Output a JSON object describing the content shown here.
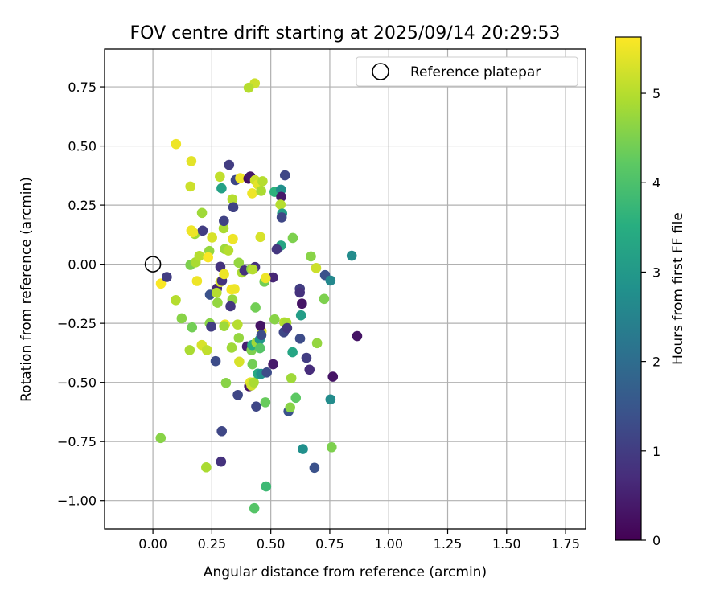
{
  "chart_data": {
    "type": "scatter",
    "title": "FOV centre drift starting at 2025/09/14 20:29:53",
    "xlabel": "Angular distance from reference (arcmin)",
    "ylabel": "Rotation from reference (arcmin)",
    "xlim": [
      -0.205,
      1.835
    ],
    "ylim": [
      -1.12,
      0.91
    ],
    "x_ticks": [
      0.0,
      0.25,
      0.5,
      0.75,
      1.0,
      1.25,
      1.5,
      1.75
    ],
    "x_tick_labels": [
      "0.00",
      "0.25",
      "0.50",
      "0.75",
      "1.00",
      "1.25",
      "1.50",
      "1.75"
    ],
    "y_ticks": [
      0.75,
      0.5,
      0.25,
      0.0,
      -0.25,
      -0.5,
      -0.75,
      -1.0
    ],
    "y_tick_labels": [
      "0.75",
      "0.50",
      "0.25",
      "0.00",
      "−0.25",
      "−0.50",
      "−0.75",
      "−1.00"
    ],
    "grid": true,
    "legend": {
      "placement": "top-right",
      "entries": [
        "Reference platepar"
      ]
    },
    "reference_point": {
      "x": 0.0,
      "y": 0.0,
      "marker": "open-circle"
    },
    "colorbar": {
      "label": "Hours from first FF file",
      "colormap": "viridis",
      "range": [
        0,
        5.63
      ],
      "ticks": [
        0,
        1,
        2,
        3,
        4,
        5
      ],
      "tick_labels": [
        "0",
        "1",
        "2",
        "3",
        "4",
        "5"
      ]
    },
    "points": [
      [
        0.432,
        0.765,
        5.2
      ],
      [
        0.406,
        0.746,
        5.0
      ],
      [
        0.098,
        0.508,
        5.5
      ],
      [
        0.163,
        0.436,
        5.4
      ],
      [
        0.159,
        0.329,
        5.2
      ],
      [
        0.122,
        -0.229,
        4.6
      ],
      [
        0.097,
        -0.152,
        5.0
      ],
      [
        0.034,
        -0.082,
        5.6
      ],
      [
        0.059,
        -0.054,
        1.0
      ],
      [
        0.033,
        -0.735,
        4.6
      ],
      [
        0.163,
        0.143,
        5.5
      ],
      [
        0.178,
        0.128,
        4.8
      ],
      [
        0.208,
        0.217,
        4.8
      ],
      [
        0.211,
        0.142,
        1.0
      ],
      [
        0.17,
        0.135,
        5.5
      ],
      [
        0.159,
        -0.003,
        4.5
      ],
      [
        0.181,
        0.008,
        4.9
      ],
      [
        0.197,
        0.035,
        5.0
      ],
      [
        0.187,
        -0.071,
        5.5
      ],
      [
        0.166,
        -0.267,
        4.4
      ],
      [
        0.156,
        -0.363,
        4.9
      ],
      [
        0.207,
        -0.342,
        5.3
      ],
      [
        0.229,
        -0.363,
        5.1
      ],
      [
        0.226,
        -0.859,
        4.9
      ],
      [
        0.239,
        0.056,
        4.7
      ],
      [
        0.234,
        0.029,
        5.6
      ],
      [
        0.251,
        0.113,
        5.3
      ],
      [
        0.242,
        -0.129,
        1.4
      ],
      [
        0.241,
        -0.25,
        4.6
      ],
      [
        0.247,
        -0.264,
        1.0
      ],
      [
        0.266,
        -0.41,
        1.3
      ],
      [
        0.284,
        0.37,
        5.1
      ],
      [
        0.291,
        0.321,
        3.2
      ],
      [
        0.3,
        0.152,
        4.9
      ],
      [
        0.301,
        0.183,
        1.1
      ],
      [
        0.286,
        -0.011,
        0.8
      ],
      [
        0.272,
        -0.103,
        0.6
      ],
      [
        0.27,
        -0.121,
        5.0
      ],
      [
        0.286,
        -0.075,
        5.3
      ],
      [
        0.274,
        -0.163,
        4.7
      ],
      [
        0.293,
        -0.07,
        0.8
      ],
      [
        0.302,
        -0.042,
        5.5
      ],
      [
        0.305,
        0.064,
        4.8
      ],
      [
        0.306,
        -0.255,
        5.5
      ],
      [
        0.302,
        -0.262,
        4.8
      ],
      [
        0.292,
        -0.706,
        1.2
      ],
      [
        0.289,
        -0.835,
        0.8
      ],
      [
        0.323,
        0.42,
        1.0
      ],
      [
        0.337,
        0.275,
        5.0
      ],
      [
        0.341,
        0.241,
        1.1
      ],
      [
        0.351,
        0.356,
        1.2
      ],
      [
        0.37,
        0.364,
        5.5
      ],
      [
        0.339,
        0.107,
        5.5
      ],
      [
        0.32,
        0.058,
        5.0
      ],
      [
        0.333,
        -0.107,
        5.6
      ],
      [
        0.337,
        -0.15,
        4.7
      ],
      [
        0.346,
        -0.105,
        5.5
      ],
      [
        0.329,
        -0.178,
        0.9
      ],
      [
        0.334,
        -0.353,
        4.8
      ],
      [
        0.31,
        -0.502,
        4.6
      ],
      [
        0.364,
        0.006,
        4.7
      ],
      [
        0.378,
        -0.035,
        4.9
      ],
      [
        0.388,
        -0.026,
        0.8
      ],
      [
        0.359,
        -0.255,
        5.0
      ],
      [
        0.364,
        -0.312,
        4.7
      ],
      [
        0.366,
        -0.412,
        5.3
      ],
      [
        0.36,
        -0.553,
        1.2
      ],
      [
        0.405,
        0.362,
        0.2
      ],
      [
        0.413,
        0.371,
        0.4
      ],
      [
        0.433,
        0.355,
        5.2
      ],
      [
        0.446,
        0.337,
        5.4
      ],
      [
        0.421,
        0.3,
        5.5
      ],
      [
        0.465,
        0.351,
        5.0
      ],
      [
        0.459,
        0.31,
        4.9
      ],
      [
        0.456,
        0.115,
        5.3
      ],
      [
        0.417,
        -0.02,
        4.6
      ],
      [
        0.433,
        -0.012,
        0.8
      ],
      [
        0.423,
        -0.022,
        5.0
      ],
      [
        0.399,
        -0.348,
        0.5
      ],
      [
        0.418,
        -0.364,
        4.5
      ],
      [
        0.421,
        -0.342,
        3.5
      ],
      [
        0.439,
        -0.331,
        4.8
      ],
      [
        0.453,
        -0.319,
        2.9
      ],
      [
        0.461,
        -0.284,
        5.4
      ],
      [
        0.456,
        -0.26,
        0.3
      ],
      [
        0.46,
        -0.3,
        1.3
      ],
      [
        0.435,
        -0.183,
        4.4
      ],
      [
        0.473,
        -0.074,
        4.4
      ],
      [
        0.454,
        -0.355,
        4.1
      ],
      [
        0.408,
        -0.516,
        0.3
      ],
      [
        0.413,
        -0.5,
        5.4
      ],
      [
        0.418,
        -0.513,
        5.2
      ],
      [
        0.428,
        -0.5,
        4.9
      ],
      [
        0.422,
        -0.423,
        4.4
      ],
      [
        0.445,
        -0.463,
        3.4
      ],
      [
        0.459,
        -0.464,
        2.8
      ],
      [
        0.483,
        -0.458,
        1.3
      ],
      [
        0.438,
        -0.602,
        1.2
      ],
      [
        0.477,
        -0.584,
        4.3
      ],
      [
        0.48,
        -0.94,
        3.8
      ],
      [
        0.43,
        -1.032,
        4.1
      ],
      [
        0.516,
        0.306,
        3.6
      ],
      [
        0.543,
        0.315,
        2.8
      ],
      [
        0.544,
        0.285,
        0.4
      ],
      [
        0.541,
        0.252,
        5.0
      ],
      [
        0.548,
        0.214,
        3.1
      ],
      [
        0.546,
        0.198,
        1.2
      ],
      [
        0.543,
        0.079,
        3.3
      ],
      [
        0.525,
        0.063,
        0.9
      ],
      [
        0.509,
        -0.056,
        0.6
      ],
      [
        0.56,
        0.376,
        1.2
      ],
      [
        0.593,
        0.111,
        4.5
      ],
      [
        0.516,
        -0.233,
        4.6
      ],
      [
        0.557,
        -0.246,
        5.0
      ],
      [
        0.566,
        -0.247,
        4.9
      ],
      [
        0.555,
        -0.288,
        1.2
      ],
      [
        0.569,
        -0.27,
        0.9
      ],
      [
        0.592,
        -0.372,
        3.3
      ],
      [
        0.575,
        -0.622,
        1.4
      ],
      [
        0.582,
        -0.606,
        4.6
      ],
      [
        0.587,
        -0.482,
        4.8
      ],
      [
        0.51,
        -0.423,
        0.4
      ],
      [
        0.606,
        -0.565,
        4.2
      ],
      [
        0.623,
        -0.104,
        1.0
      ],
      [
        0.623,
        -0.12,
        0.8
      ],
      [
        0.632,
        -0.167,
        0.3
      ],
      [
        0.628,
        -0.216,
        3.1
      ],
      [
        0.624,
        -0.315,
        1.3
      ],
      [
        0.636,
        -0.782,
        2.8
      ],
      [
        0.651,
        -0.396,
        1.0
      ],
      [
        0.664,
        -0.446,
        0.7
      ],
      [
        0.67,
        0.033,
        4.6
      ],
      [
        0.685,
        -0.861,
        1.4
      ],
      [
        0.696,
        -0.334,
        4.7
      ],
      [
        0.692,
        -0.016,
        5.2
      ],
      [
        0.726,
        -0.147,
        4.5
      ],
      [
        0.73,
        -0.046,
        1.4
      ],
      [
        0.753,
        -0.069,
        2.6
      ],
      [
        0.753,
        -0.572,
        2.7
      ],
      [
        0.758,
        -0.774,
        4.5
      ],
      [
        0.763,
        -0.476,
        0.3
      ],
      [
        0.843,
        0.036,
        2.7
      ],
      [
        0.866,
        -0.304,
        0.3
      ],
      [
        0.478,
        -0.059,
        5.5
      ]
    ]
  }
}
